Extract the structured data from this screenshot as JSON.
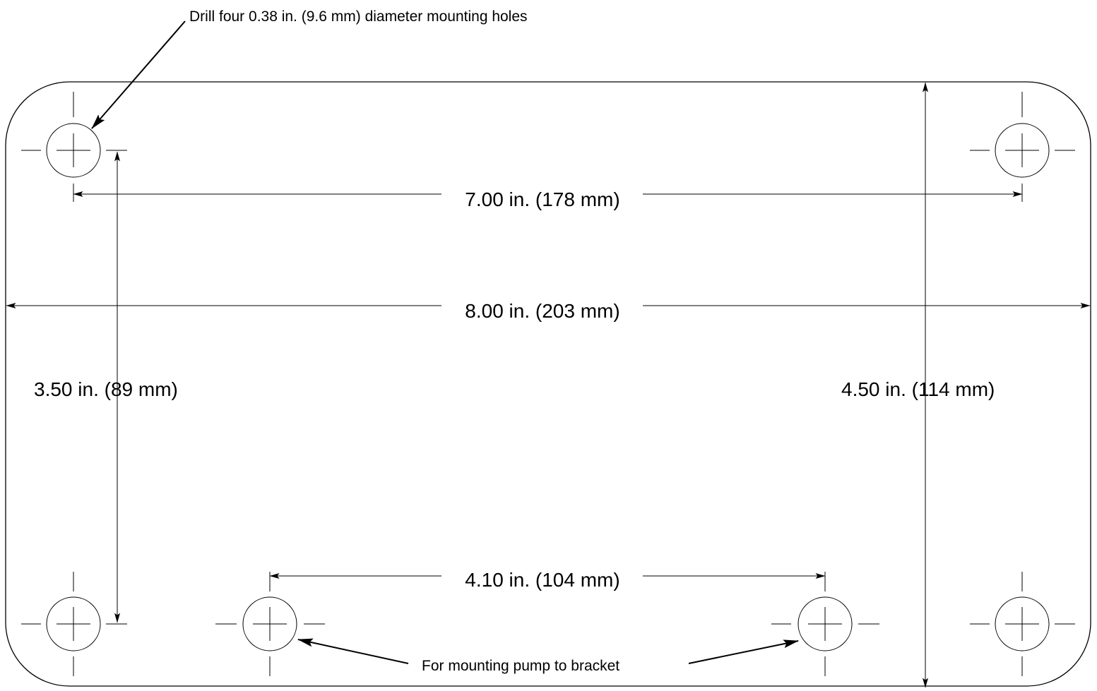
{
  "notes": {
    "drill_holes": "Drill four 0.38 in. (9.6 mm) diameter mounting holes",
    "pump_mount": "For mounting pump to bracket"
  },
  "dimensions": {
    "hole_spacing_horizontal": "7.00 in. (178 mm)",
    "overall_width": "8.00 in. (203 mm)",
    "hole_spacing_vertical": "3.50 in. (89 mm)",
    "overall_height": "4.50 in. (114 mm)",
    "pump_hole_spacing": "4.10 in. (104 mm)"
  }
}
